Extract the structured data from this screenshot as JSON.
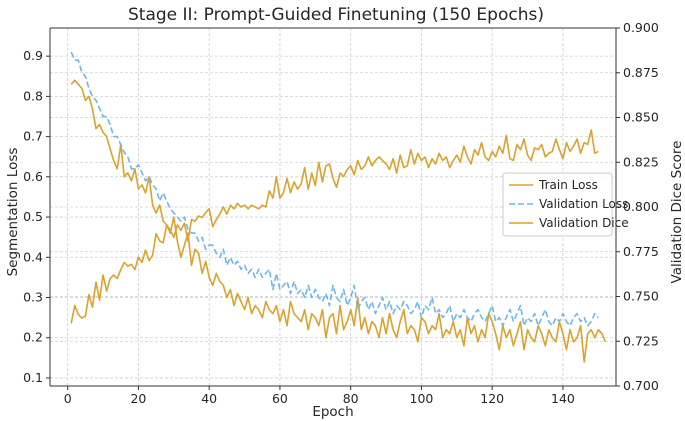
{
  "chart_data": {
    "type": "line",
    "title": "Stage II: Prompt-Guided Finetuning (150 Epochs)",
    "xlabel": "Epoch",
    "ylabel_left": "Segmentation Loss",
    "ylabel_right": "Validation Dice Score",
    "xlim": [
      -5,
      155
    ],
    "ylim_left": [
      0.08,
      0.97
    ],
    "ylim_right": [
      0.7,
      0.9
    ],
    "xticks": [
      0,
      20,
      40,
      60,
      80,
      100,
      120,
      140
    ],
    "yticks_left": [
      0.1,
      0.2,
      0.3,
      0.4,
      0.5,
      0.6,
      0.7,
      0.8,
      0.9
    ],
    "yticks_right": [
      "0.700",
      "0.725",
      "0.750",
      "0.775",
      "0.800",
      "0.825",
      "0.850",
      "0.875",
      "0.900"
    ],
    "grid": true,
    "legend_position": "center-right",
    "series": [
      {
        "name": "Train Loss",
        "axis": "left",
        "style": "solid",
        "color": "#daa22f",
        "x_start": 1,
        "values": [
          0.83,
          0.84,
          0.83,
          0.82,
          0.79,
          0.8,
          0.77,
          0.72,
          0.73,
          0.71,
          0.7,
          0.67,
          0.64,
          0.62,
          0.68,
          0.6,
          0.61,
          0.59,
          0.62,
          0.57,
          0.58,
          0.56,
          0.6,
          0.53,
          0.51,
          0.53,
          0.49,
          0.48,
          0.46,
          0.5,
          0.44,
          0.4,
          0.43,
          0.46,
          0.38,
          0.42,
          0.41,
          0.36,
          0.39,
          0.35,
          0.33,
          0.36,
          0.34,
          0.33,
          0.3,
          0.32,
          0.28,
          0.31,
          0.29,
          0.27,
          0.3,
          0.26,
          0.28,
          0.27,
          0.25,
          0.29,
          0.27,
          0.26,
          0.28,
          0.24,
          0.27,
          0.23,
          0.29,
          0.26,
          0.25,
          0.24,
          0.27,
          0.22,
          0.26,
          0.25,
          0.23,
          0.27,
          0.2,
          0.25,
          0.26,
          0.21,
          0.28,
          0.22,
          0.24,
          0.27,
          0.23,
          0.3,
          0.22,
          0.25,
          0.21,
          0.24,
          0.23,
          0.2,
          0.25,
          0.21,
          0.26,
          0.22,
          0.2,
          0.24,
          0.27,
          0.21,
          0.23,
          0.22,
          0.19,
          0.25,
          0.24,
          0.21,
          0.23,
          0.22,
          0.26,
          0.2,
          0.22,
          0.21,
          0.24,
          0.2,
          0.22,
          0.18,
          0.25,
          0.21,
          0.23,
          0.19,
          0.22,
          0.2,
          0.26,
          0.24,
          0.21,
          0.17,
          0.23,
          0.2,
          0.22,
          0.18,
          0.21,
          0.24,
          0.17,
          0.22,
          0.2,
          0.19,
          0.23,
          0.21,
          0.18,
          0.22,
          0.2,
          0.19,
          0.24,
          0.21,
          0.17,
          0.22,
          0.19,
          0.2,
          0.23,
          0.14,
          0.21,
          0.22,
          0.2,
          0.22,
          0.21,
          0.19
        ]
      },
      {
        "name": "Validation Loss",
        "axis": "left",
        "style": "dashed",
        "color": "#6fb8e3",
        "x_start": 1,
        "values": [
          0.91,
          0.89,
          0.89,
          0.86,
          0.85,
          0.82,
          0.8,
          0.79,
          0.77,
          0.75,
          0.75,
          0.73,
          0.7,
          0.7,
          0.68,
          0.66,
          0.65,
          0.62,
          0.62,
          0.63,
          0.61,
          0.59,
          0.6,
          0.58,
          0.57,
          0.54,
          0.56,
          0.54,
          0.52,
          0.51,
          0.5,
          0.49,
          0.5,
          0.47,
          0.46,
          0.46,
          0.44,
          0.45,
          0.42,
          0.43,
          0.43,
          0.41,
          0.4,
          0.42,
          0.38,
          0.4,
          0.38,
          0.39,
          0.37,
          0.38,
          0.36,
          0.37,
          0.35,
          0.37,
          0.35,
          0.36,
          0.37,
          0.32,
          0.36,
          0.32,
          0.33,
          0.34,
          0.31,
          0.34,
          0.31,
          0.32,
          0.3,
          0.33,
          0.3,
          0.32,
          0.3,
          0.29,
          0.31,
          0.28,
          0.33,
          0.3,
          0.29,
          0.32,
          0.28,
          0.3,
          0.33,
          0.27,
          0.29,
          0.3,
          0.27,
          0.29,
          0.26,
          0.28,
          0.3,
          0.27,
          0.29,
          0.26,
          0.28,
          0.27,
          0.29,
          0.28,
          0.26,
          0.27,
          0.29,
          0.25,
          0.28,
          0.27,
          0.3,
          0.26,
          0.27,
          0.25,
          0.26,
          0.28,
          0.24,
          0.26,
          0.25,
          0.27,
          0.25,
          0.24,
          0.26,
          0.27,
          0.25,
          0.24,
          0.26,
          0.28,
          0.24,
          0.25,
          0.23,
          0.25,
          0.27,
          0.24,
          0.26,
          0.28,
          0.23,
          0.25,
          0.24,
          0.26,
          0.23,
          0.25,
          0.27,
          0.24,
          0.23,
          0.25,
          0.24,
          0.26,
          0.24,
          0.23,
          0.25,
          0.26,
          0.24,
          0.25,
          0.23,
          0.24,
          0.26,
          0.25
        ]
      },
      {
        "name": "Validation Dice",
        "axis": "right",
        "style": "solid",
        "color": "#daa22f",
        "x_start": 1,
        "values": [
          0.735,
          0.745,
          0.74,
          0.738,
          0.739,
          0.751,
          0.744,
          0.758,
          0.748,
          0.762,
          0.753,
          0.76,
          0.762,
          0.76,
          0.765,
          0.769,
          0.767,
          0.768,
          0.765,
          0.772,
          0.769,
          0.776,
          0.77,
          0.773,
          0.785,
          0.781,
          0.78,
          0.79,
          0.787,
          0.783,
          0.79,
          0.787,
          0.791,
          0.781,
          0.793,
          0.792,
          0.795,
          0.794,
          0.797,
          0.799,
          0.789,
          0.793,
          0.796,
          0.8,
          0.796,
          0.801,
          0.799,
          0.802,
          0.8,
          0.801,
          0.799,
          0.801,
          0.8,
          0.799,
          0.801,
          0.8,
          0.809,
          0.805,
          0.817,
          0.805,
          0.808,
          0.816,
          0.808,
          0.814,
          0.81,
          0.813,
          0.822,
          0.81,
          0.819,
          0.812,
          0.825,
          0.814,
          0.823,
          0.824,
          0.816,
          0.811,
          0.819,
          0.817,
          0.821,
          0.823,
          0.818,
          0.826,
          0.821,
          0.823,
          0.828,
          0.823,
          0.826,
          0.828,
          0.826,
          0.824,
          0.821,
          0.827,
          0.819,
          0.829,
          0.822,
          0.823,
          0.832,
          0.824,
          0.83,
          0.826,
          0.828,
          0.822,
          0.827,
          0.824,
          0.83,
          0.826,
          0.828,
          0.822,
          0.826,
          0.829,
          0.825,
          0.834,
          0.828,
          0.824,
          0.832,
          0.829,
          0.836,
          0.828,
          0.826,
          0.831,
          0.828,
          0.834,
          0.83,
          0.84,
          0.827,
          0.826,
          0.835,
          0.832,
          0.838,
          0.829,
          0.826,
          0.833,
          0.832,
          0.835,
          0.828,
          0.83,
          0.831,
          0.838,
          0.832,
          0.827,
          0.836,
          0.831,
          0.834,
          0.838,
          0.83,
          0.836,
          0.835,
          0.843,
          0.83,
          0.831
        ]
      }
    ]
  }
}
